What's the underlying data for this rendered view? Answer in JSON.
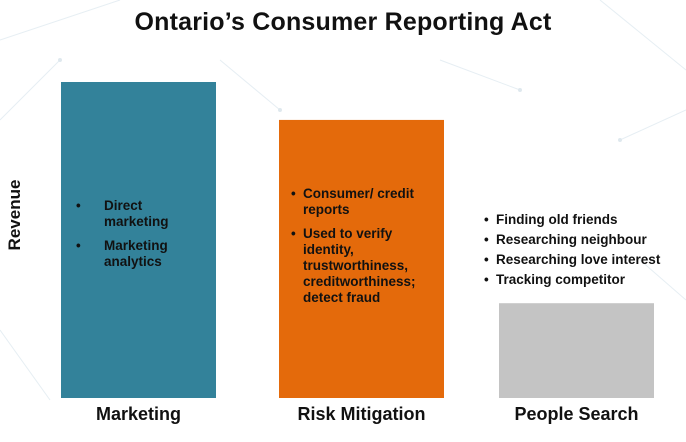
{
  "title": "Ontario’s Consumer Reporting Act",
  "colors": {
    "marketing": "#33829a",
    "risk_mitigation": "#e46a0b",
    "people_search": "#c4c4c4"
  },
  "chart_data": {
    "type": "bar",
    "title": "Ontario’s Consumer Reporting Act",
    "xlabel": "",
    "ylabel": "Revenue",
    "categories": [
      "Marketing",
      "Risk Mitigation",
      "People Search"
    ],
    "values": [
      100,
      88,
      30
    ],
    "ylim": [
      0,
      100
    ],
    "grid": false,
    "annotations": [
      {
        "category": "Marketing",
        "bullets": [
          "Direct marketing",
          "Marketing analytics"
        ]
      },
      {
        "category": "Risk Mitigation",
        "bullets": [
          "Consumer/ credit reports",
          "Used to verify identity, trustworthiness, creditworthiness; detect fraud"
        ]
      },
      {
        "category": "People Search",
        "bullets": [
          "Finding old friends",
          "Researching neighbour",
          "Researching love interest",
          "Tracking competitor"
        ]
      }
    ]
  }
}
